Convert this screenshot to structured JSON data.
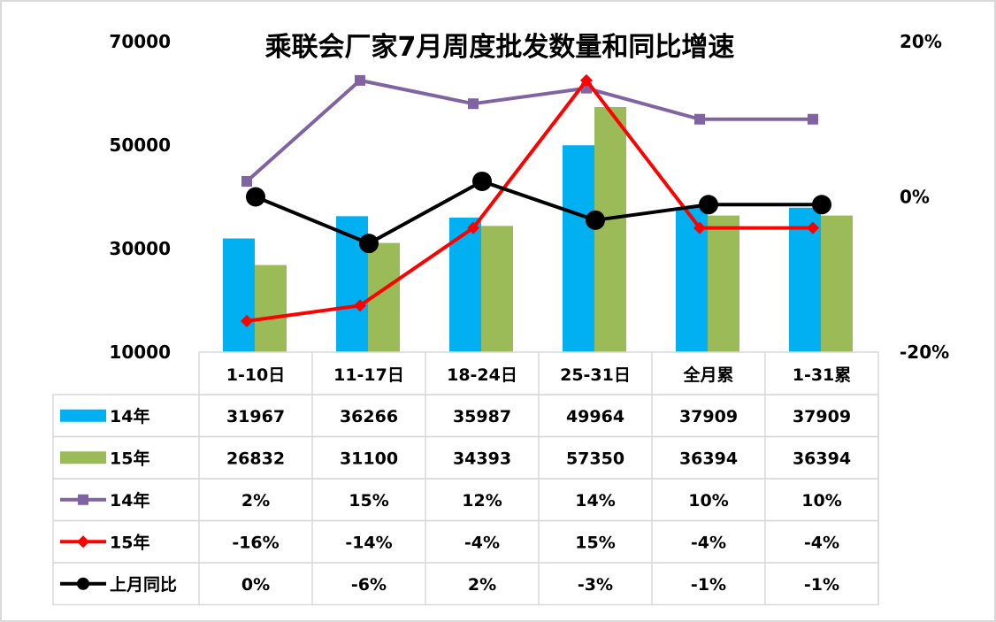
{
  "chart_data": {
    "type": "bar",
    "title": "乘联会厂家7月周度批发数量和同比增速",
    "categories": [
      "1-10日",
      "11-17日",
      "18-24日",
      "25-31日",
      "全月累",
      "1-31累"
    ],
    "left_axis": {
      "min": 10000,
      "max": 70000,
      "ticks": [
        "70000",
        "50000",
        "30000",
        "10000"
      ],
      "tick_values": [
        70000,
        50000,
        30000,
        10000
      ]
    },
    "right_axis": {
      "min": -20,
      "max": 20,
      "ticks": [
        "20%",
        "0%",
        "-20%"
      ],
      "tick_values": [
        20,
        0,
        -20
      ]
    },
    "bar_series": [
      {
        "name": "14年",
        "color": "#00B0F0",
        "values": [
          31967,
          36266,
          35987,
          49964,
          37909,
          37909
        ],
        "labels": [
          "31967",
          "36266",
          "35987",
          "49964",
          "37909",
          "37909"
        ]
      },
      {
        "name": "15年",
        "color": "#9BBB59",
        "values": [
          26832,
          31100,
          34393,
          57350,
          36394,
          36394
        ],
        "labels": [
          "26832",
          "31100",
          "34393",
          "57350",
          "36394",
          "36394"
        ]
      }
    ],
    "line_series": [
      {
        "name": "14年",
        "color": "#8064A2",
        "marker": "square",
        "values": [
          2,
          15,
          12,
          14,
          10,
          10
        ],
        "labels": [
          "2%",
          "15%",
          "12%",
          "14%",
          "10%",
          "10%"
        ]
      },
      {
        "name": "15年",
        "color": "#FF0000",
        "marker": "diamond",
        "values": [
          -16,
          -14,
          -4,
          15,
          -4,
          -4
        ],
        "labels": [
          "-16%",
          "-14%",
          "-4%",
          "15%",
          "-4%",
          "-4%"
        ]
      },
      {
        "name": "上月同比",
        "color": "#000000",
        "marker": "circle",
        "values": [
          0,
          -6,
          2,
          -3,
          -1,
          -1
        ],
        "labels": [
          "0%",
          "-6%",
          "2%",
          "-3%",
          "-1%",
          "-1%"
        ]
      }
    ]
  }
}
